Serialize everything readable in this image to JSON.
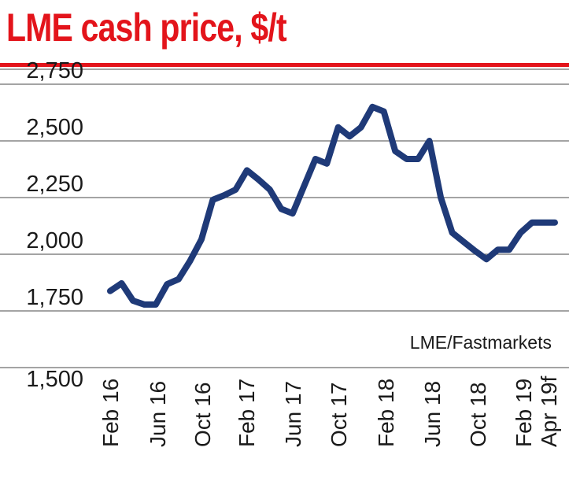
{
  "title": "LME cash price, $/t",
  "source": "LME/Fastmarkets",
  "colors": {
    "title": "#e3141b",
    "line": "#1f3a78",
    "grid": "#4a4a4a",
    "text": "#1a1a1a"
  },
  "chart_data": {
    "type": "line",
    "title": "LME cash price, $/t",
    "xlabel": "",
    "ylabel": "",
    "ylim": [
      1500,
      2750
    ],
    "yticks": [
      1500,
      1750,
      2000,
      2250,
      2500,
      2750
    ],
    "ytick_labels": [
      "1,500",
      "1,750",
      "2,000",
      "2,250",
      "2,500",
      "2,750"
    ],
    "xtick_labels": [
      "Feb 16",
      "Jun 16",
      "Oct 16",
      "Feb 17",
      "Jun 17",
      "Oct 17",
      "Feb 18",
      "Jun 18",
      "Oct 18",
      "Feb 19",
      "Apr 19f"
    ],
    "grid": true,
    "series": [
      {
        "values": [
          1838,
          1872,
          1795,
          1778,
          1778,
          1868,
          1890,
          1970,
          2065,
          2240,
          2260,
          2285,
          2370,
          2330,
          2285,
          2200,
          2180,
          2300,
          2420,
          2400,
          2560,
          2520,
          2560,
          2650,
          2630,
          2455,
          2420,
          2420,
          2500,
          2250,
          2095,
          2055,
          2015,
          1978,
          2020,
          2020,
          2095,
          2140,
          2140,
          2140
        ]
      }
    ]
  }
}
